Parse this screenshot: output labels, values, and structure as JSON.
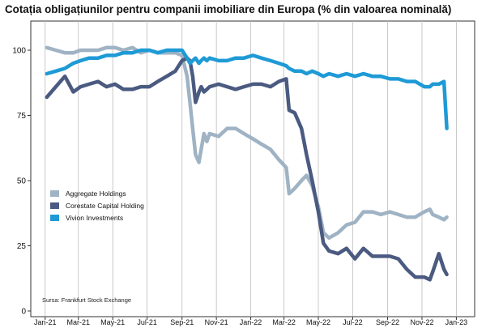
{
  "title": "Cotația obligațiunilor pentru companii imobiliare din Europa (% din valoarea nominală)",
  "source": "Sursa: Frankfurt Stock Exchange",
  "chart_data": {
    "type": "line",
    "title": "Cotația obligațiunilor pentru companii imobiliare din Europa (% din valoarea nominală)",
    "xlabel": "",
    "ylabel": "",
    "x": [
      "2021-01-04",
      "2021-01-20",
      "2021-02-05",
      "2021-02-20",
      "2021-03-05",
      "2021-03-20",
      "2021-04-05",
      "2021-04-20",
      "2021-05-05",
      "2021-05-20",
      "2021-06-05",
      "2021-06-20",
      "2021-07-05",
      "2021-07-20",
      "2021-08-05",
      "2021-08-20",
      "2021-09-01",
      "2021-09-10",
      "2021-09-15",
      "2021-09-20",
      "2021-09-25",
      "2021-10-01",
      "2021-10-05",
      "2021-10-10",
      "2021-10-15",
      "2021-10-20",
      "2021-11-05",
      "2021-11-20",
      "2021-12-05",
      "2021-12-20",
      "2022-01-05",
      "2022-01-20",
      "2022-02-05",
      "2022-02-20",
      "2022-03-05",
      "2022-03-10",
      "2022-03-20",
      "2022-04-01",
      "2022-04-10",
      "2022-04-20",
      "2022-05-01",
      "2022-05-10",
      "2022-05-20",
      "2022-06-05",
      "2022-06-20",
      "2022-07-05",
      "2022-07-20",
      "2022-08-05",
      "2022-08-20",
      "2022-09-05",
      "2022-09-20",
      "2022-10-05",
      "2022-10-20",
      "2022-11-05",
      "2022-11-15",
      "2022-11-20",
      "2022-12-01",
      "2022-12-10",
      "2022-12-15"
    ],
    "ylim": [
      0,
      105
    ],
    "yticks": [
      0,
      25,
      50,
      75,
      100
    ],
    "xtick_labels": [
      "Jan-21",
      "Mar-21",
      "May-21",
      "Jul-21",
      "Sep-21",
      "Nov-21",
      "Jan-22",
      "Mar-22",
      "May-22",
      "Jul-22",
      "Sep-22",
      "Nov-22",
      "Jan-23"
    ],
    "xtick_dates": [
      "2021-01-01",
      "2021-03-01",
      "2021-05-01",
      "2021-07-01",
      "2021-09-01",
      "2021-11-01",
      "2022-01-01",
      "2022-03-01",
      "2022-05-01",
      "2022-07-01",
      "2022-09-01",
      "2022-11-01",
      "2023-01-01"
    ],
    "grid": "vertical",
    "legend": "middle-left",
    "series": [
      {
        "name": "Aggregate Holdings",
        "color": "#9fb3c4",
        "values": [
          101,
          100,
          99,
          99,
          100,
          100,
          100,
          101,
          101,
          100,
          101,
          99,
          100,
          99,
          99,
          99,
          98,
          90,
          80,
          70,
          60,
          57,
          62,
          68,
          65,
          68,
          67,
          70,
          70,
          68,
          66,
          64,
          62,
          58,
          55,
          45,
          47,
          50,
          52,
          48,
          40,
          30,
          28,
          30,
          33,
          34,
          38,
          38,
          37,
          38,
          37,
          36,
          36,
          38,
          39,
          37,
          36,
          35,
          36
        ]
      },
      {
        "name": "Corestate Capital Holding",
        "color": "#4a5a80",
        "values": [
          82,
          86,
          90,
          84,
          86,
          87,
          88,
          86,
          87,
          85,
          85,
          86,
          86,
          88,
          90,
          92,
          96,
          97,
          96,
          90,
          80,
          84,
          86,
          84,
          85,
          86,
          87,
          86,
          85,
          86,
          87,
          87,
          86,
          88,
          89,
          77,
          76,
          70,
          60,
          50,
          38,
          26,
          23,
          22,
          24,
          20,
          24,
          21,
          21,
          21,
          20,
          16,
          13,
          13,
          12,
          15,
          22,
          16,
          14
        ]
      },
      {
        "name": "Vivion Investments",
        "color": "#1e9ad6",
        "values": [
          91,
          92,
          93,
          95,
          96,
          97,
          97,
          98,
          98,
          99,
          99,
          100,
          100,
          99,
          100,
          100,
          100,
          97,
          95,
          96,
          97,
          95,
          96,
          97,
          96,
          97,
          96,
          96,
          97,
          97,
          98,
          97,
          96,
          95,
          94,
          93,
          92,
          92,
          91,
          92,
          91,
          90,
          91,
          90,
          91,
          90,
          91,
          90,
          90,
          89,
          89,
          88,
          88,
          86,
          86,
          87,
          87,
          88,
          70
        ]
      }
    ]
  }
}
